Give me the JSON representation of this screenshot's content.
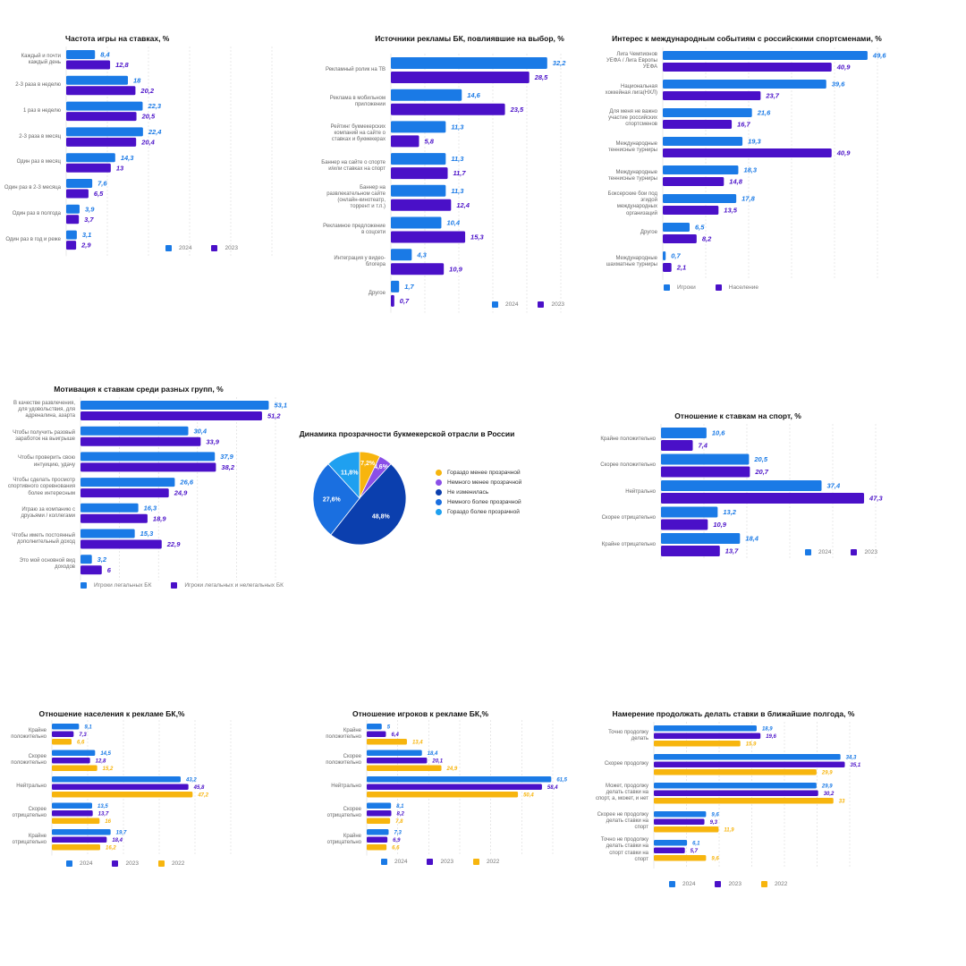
{
  "colors": {
    "c2024": "#1a7ae6",
    "c2023": "#4a10c8",
    "c2022": "#f7b50e",
    "grid": "#d9d9d9"
  },
  "chart_data": [
    {
      "id": "freq",
      "type": "bar",
      "title": "Частота игры на ставках, %",
      "categories": [
        "Каждый и почти каждый день",
        "2-3 раза в неделю",
        "1 раз в неделю",
        "2-3 раза в месяц",
        "Один раз в месяц",
        "Один раз в 2-3 месяца",
        "Один раз в полгода",
        "Один раз в год и реже"
      ],
      "series": [
        {
          "name": "2024",
          "values": [
            8.4,
            18,
            22.3,
            22.4,
            14.3,
            7.6,
            3.9,
            3.1
          ],
          "labels": [
            "8,4",
            "18",
            "22,3",
            "22,4",
            "14,3",
            "7,6",
            "3,9",
            "3,1"
          ]
        },
        {
          "name": "2023",
          "values": [
            12.8,
            20.2,
            20.5,
            20.4,
            13,
            6.5,
            3.7,
            2.9
          ],
          "labels": [
            "12,8",
            "20,2",
            "20,5",
            "20,4",
            "13",
            "6,5",
            "3,7",
            "2,9"
          ]
        }
      ],
      "xlim": [
        0,
        60
      ]
    },
    {
      "id": "ads",
      "type": "bar",
      "title": "Источники рекламы БК, повлиявшие на выбор, %",
      "categories": [
        "Рекламный ролик на ТВ",
        "Реклама в мобильном приложении",
        "Рейтинг букмекерских компаний на сайте о ставках и букмекерах",
        "Баннер на сайте о спорте и/или ставках на спорт",
        "Баннер на развлекательном сайте (онлайн-кинотеатр, торрент и т.п.)",
        "Рекламное предложение в соцсети",
        "Интеграция у видео-блогера",
        "Другое"
      ],
      "series": [
        {
          "name": "2024",
          "values": [
            32.2,
            14.6,
            11.3,
            11.3,
            11.3,
            10.4,
            4.3,
            1.7
          ],
          "labels": [
            "32,2",
            "14,6",
            "11,3",
            "11,3",
            "11,3",
            "10,4",
            "4,3",
            "1,7"
          ]
        },
        {
          "name": "2023",
          "values": [
            28.5,
            23.5,
            5.8,
            11.7,
            12.4,
            15.3,
            10.9,
            0.7
          ],
          "labels": [
            "28,5",
            "23,5",
            "5,8",
            "11,7",
            "12,4",
            "15,3",
            "10,9",
            "0,7"
          ]
        }
      ],
      "xlim": [
        0,
        35
      ]
    },
    {
      "id": "intl",
      "type": "bar",
      "title": "Интерес к международным событиям с российскими спортсменами, %",
      "categories": [
        "Лига Чемпионов УЕФА / Лига Европы УЕФА",
        "Национальная хоккейная лига(НХЛ)",
        "Для меня не важно участие российских спортсменов",
        "Международные теннисные турниры",
        "Международные теннисные турниры",
        "Боксерские бои под эгидой международных организаций",
        "Другое",
        "Международные шахматные турниры"
      ],
      "series": [
        {
          "name": "Игроки",
          "values": [
            49.6,
            39.6,
            21.6,
            19.3,
            18.3,
            17.8,
            6.5,
            0.7
          ],
          "labels": [
            "49,6",
            "39,6",
            "21,6",
            "19,3",
            "18,3",
            "17,8",
            "6,5",
            "0,7"
          ]
        },
        {
          "name": "Население",
          "values": [
            40.9,
            23.7,
            16.7,
            40.9,
            14.8,
            13.5,
            8.2,
            2.1
          ],
          "labels": [
            "40,9",
            "23,7",
            "16,7",
            "40,9",
            "14,8",
            "13,5",
            "8,2",
            "2,1"
          ]
        }
      ],
      "xlim": [
        0,
        52
      ]
    },
    {
      "id": "motiv",
      "type": "bar",
      "title": "Мотивация к ставкам среди разных групп, %",
      "categories": [
        "В качестве развлечения, для удовольствия, для адреналина, азарта",
        "Чтобы получить разовый заработок на выигрыше",
        "Чтобы проверить свою интуицию, удачу",
        "Чтобы сделать просмотр спортивного соревнования более интересным",
        "Играю за компанию с друзьями / коллегами",
        "Чтобы иметь постоянный дополнительный доход",
        "Это мой основной вид доходов"
      ],
      "series": [
        {
          "name": "Игроки легальных БК",
          "values": [
            53.1,
            30.4,
            37.9,
            26.6,
            16.3,
            15.3,
            3.2
          ],
          "labels": [
            "53,1",
            "30,4",
            "37,9",
            "26,6",
            "16,3",
            "15,3",
            "3,2"
          ]
        },
        {
          "name": "Игроки легальных и нелегальных БК",
          "values": [
            51.2,
            33.9,
            38.2,
            24.9,
            18.9,
            22.9,
            6
          ],
          "labels": [
            "51,2",
            "33,9",
            "38,2",
            "24,9",
            "18,9",
            "22,9",
            "6"
          ]
        }
      ],
      "xlim": [
        0,
        55
      ]
    },
    {
      "id": "pie",
      "type": "pie",
      "title": "Динамика прозрачности букмекерской отрасли в России",
      "categories": [
        "Гораздо менее прозрачной",
        "Немного менее прозрачной",
        "Не изменилась",
        "Немного более прозрачной",
        "Гораздо более прозрачной"
      ],
      "values": [
        7.2,
        4.6,
        48.8,
        27.6,
        11.8
      ],
      "labels": [
        "7,2%",
        "4,6%",
        "48,8%",
        "27,6%",
        "11,8%"
      ],
      "colors": [
        "#f7b50e",
        "#8a4fe8",
        "#0b3fae",
        "#1a6fe0",
        "#1fa0f0"
      ]
    },
    {
      "id": "attitude",
      "type": "bar",
      "title": "Отношение к ставкам на спорт, %",
      "categories": [
        "Крайне положительно",
        "Скорее положительно",
        "Нейтрально",
        "Скорее отрицательно",
        "Крайне отрицательно"
      ],
      "series": [
        {
          "name": "2024",
          "values": [
            10.6,
            20.5,
            37.4,
            13.2,
            18.4
          ],
          "labels": [
            "10,6",
            "20,5",
            "37,4",
            "13,2",
            "18,4"
          ]
        },
        {
          "name": "2023",
          "values": [
            7.4,
            20.7,
            47.3,
            10.9,
            13.7
          ],
          "labels": [
            "7,4",
            "20,7",
            "47,3",
            "10,9",
            "13,7"
          ]
        }
      ],
      "xlim": [
        0,
        50
      ]
    },
    {
      "id": "popads",
      "type": "bar",
      "title": "Отношение населения к рекламе БК,%",
      "categories": [
        "Крайне положительно",
        "Скорее положительно",
        "Нейтрально",
        "Скорее отрицательно",
        "Крайне отрицательно"
      ],
      "series": [
        {
          "name": "2024",
          "values": [
            9.1,
            14.5,
            43.2,
            13.5,
            19.7
          ],
          "labels": [
            "9,1",
            "14,5",
            "43,2",
            "13,5",
            "19,7"
          ]
        },
        {
          "name": "2023",
          "values": [
            7.3,
            12.8,
            45.8,
            13.7,
            18.4
          ],
          "labels": [
            "7,3",
            "12,8",
            "45,8",
            "13,7",
            "18,4"
          ]
        },
        {
          "name": "2022",
          "values": [
            6.6,
            15.2,
            47.2,
            16,
            16.2
          ],
          "labels": [
            "6,6",
            "15,2",
            "47,2",
            "16",
            "16,2"
          ]
        }
      ],
      "xlim": [
        0,
        60
      ]
    },
    {
      "id": "playads",
      "type": "bar",
      "title": "Отношение игроков к рекламе БК,%",
      "categories": [
        "Крайне положительно",
        "Скорее положительно",
        "Нейтрально",
        "Скорее отрицательно",
        "Крайне отрицательно"
      ],
      "series": [
        {
          "name": "2024",
          "values": [
            5,
            18.4,
            61.5,
            8.1,
            7.3
          ],
          "labels": [
            "5",
            "18,4",
            "61,5",
            "8,1",
            "7,3"
          ]
        },
        {
          "name": "2023",
          "values": [
            6.4,
            20.1,
            58.4,
            8.2,
            6.9
          ],
          "labels": [
            "6,4",
            "20,1",
            "58,4",
            "8,2",
            "6,9"
          ]
        },
        {
          "name": "2022",
          "values": [
            13.4,
            24.9,
            50.4,
            7.8,
            6.6
          ],
          "labels": [
            "13,4",
            "24,9",
            "50,4",
            "7,8",
            "6,6"
          ]
        }
      ],
      "xlim": [
        0,
        62
      ]
    },
    {
      "id": "intent",
      "type": "bar",
      "title": "Намерение продолжать делать ставки в ближайшие полгода, %",
      "categories": [
        "Точно продолжу делать",
        "Скорее продолжу",
        "Может, продолжу делать ставки на спорт, а, может, и нет",
        "Скорее не продолжу делать ставки на спорт",
        "Точно не продолжу делать ставки на спорт ставки на спорт"
      ],
      "series": [
        {
          "name": "2024",
          "values": [
            18.9,
            34.3,
            29.9,
            9.6,
            6.1
          ],
          "labels": [
            "18,9",
            "34,3",
            "29,9",
            "9,6",
            "6,1"
          ]
        },
        {
          "name": "2023",
          "values": [
            19.6,
            35.1,
            30.2,
            9.3,
            5.7
          ],
          "labels": [
            "19,6",
            "35,1",
            "30,2",
            "9,3",
            "5,7"
          ]
        },
        {
          "name": "2022",
          "values": [
            15.9,
            29.9,
            33,
            11.9,
            9.6
          ],
          "labels": [
            "15,9",
            "29,9",
            "33",
            "11,9",
            "9,6"
          ]
        }
      ],
      "xlim": [
        0,
        36
      ]
    }
  ]
}
